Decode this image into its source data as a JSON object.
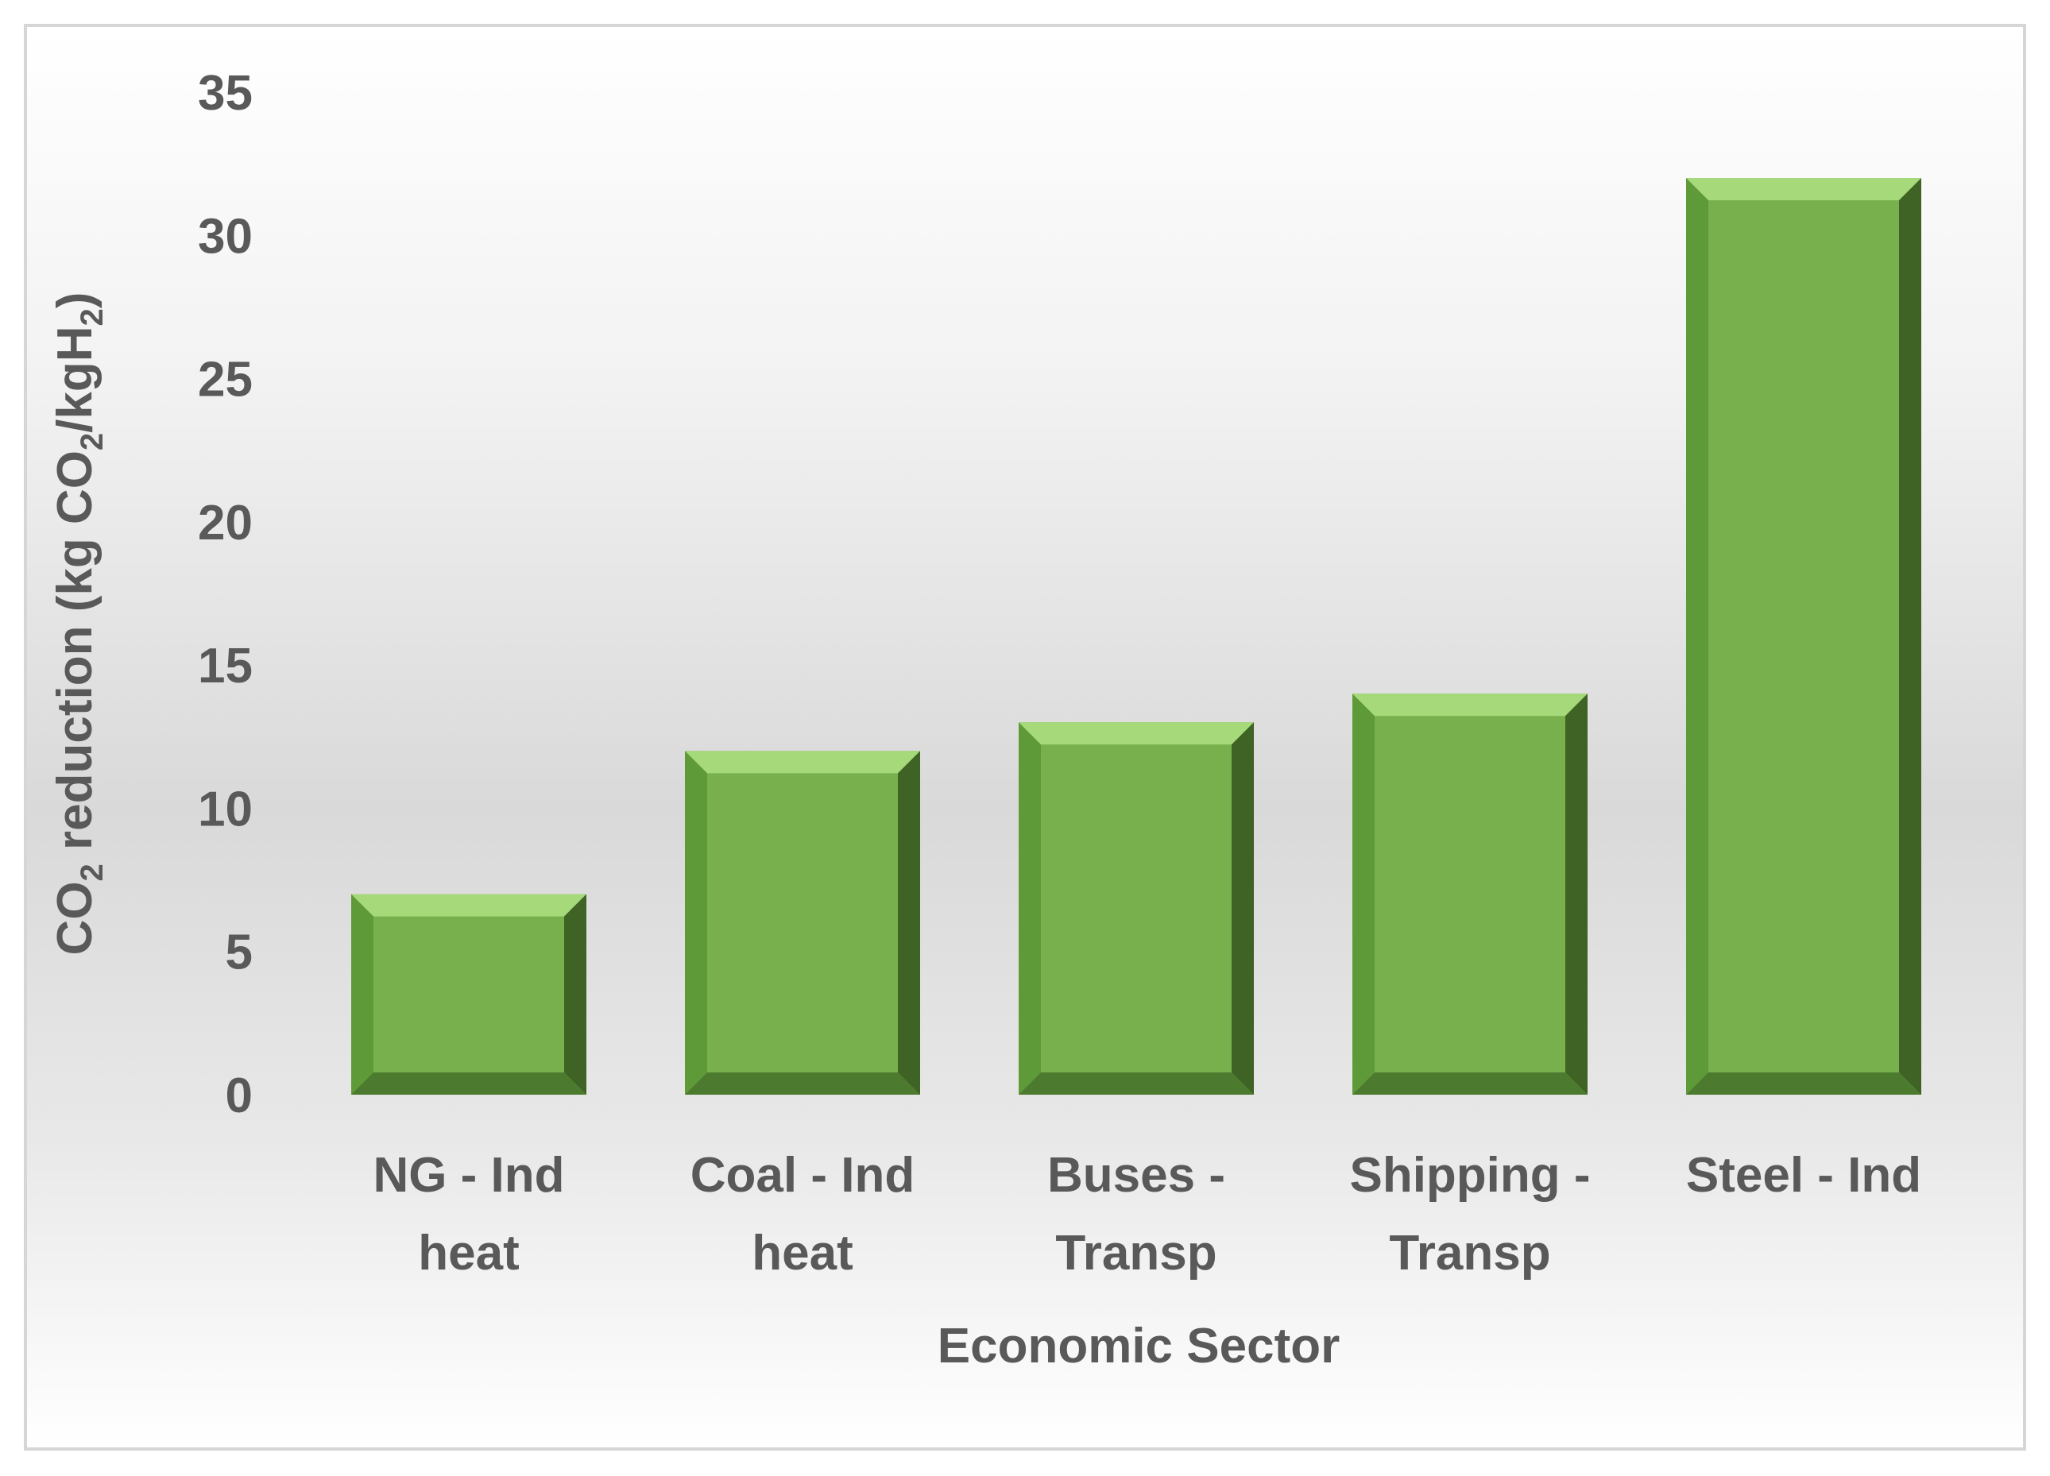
{
  "chart_data": {
    "type": "bar",
    "categories": [
      [
        "NG - Ind",
        "heat"
      ],
      [
        "Coal - Ind",
        "heat"
      ],
      [
        "Buses -",
        "Transp"
      ],
      [
        "Shipping -",
        "Transp"
      ],
      [
        "Steel - Ind"
      ]
    ],
    "values": [
      7,
      12,
      13,
      14,
      32
    ],
    "xlabel": "Economic Sector",
    "ylabel": {
      "co": "CO",
      "sub2": "2",
      "reduction": " reduction (kg CO",
      "slash_kgh": "/kgH",
      "close": ")"
    },
    "ylim": [
      0,
      35
    ],
    "yticks": [
      "0",
      "5",
      "10",
      "15",
      "20",
      "25",
      "30",
      "35"
    ],
    "bar_color": "#77b04d",
    "bar_highlight": "#a6d97a",
    "bar_shadow": "#3e6325",
    "grid": false,
    "legend": "none"
  }
}
